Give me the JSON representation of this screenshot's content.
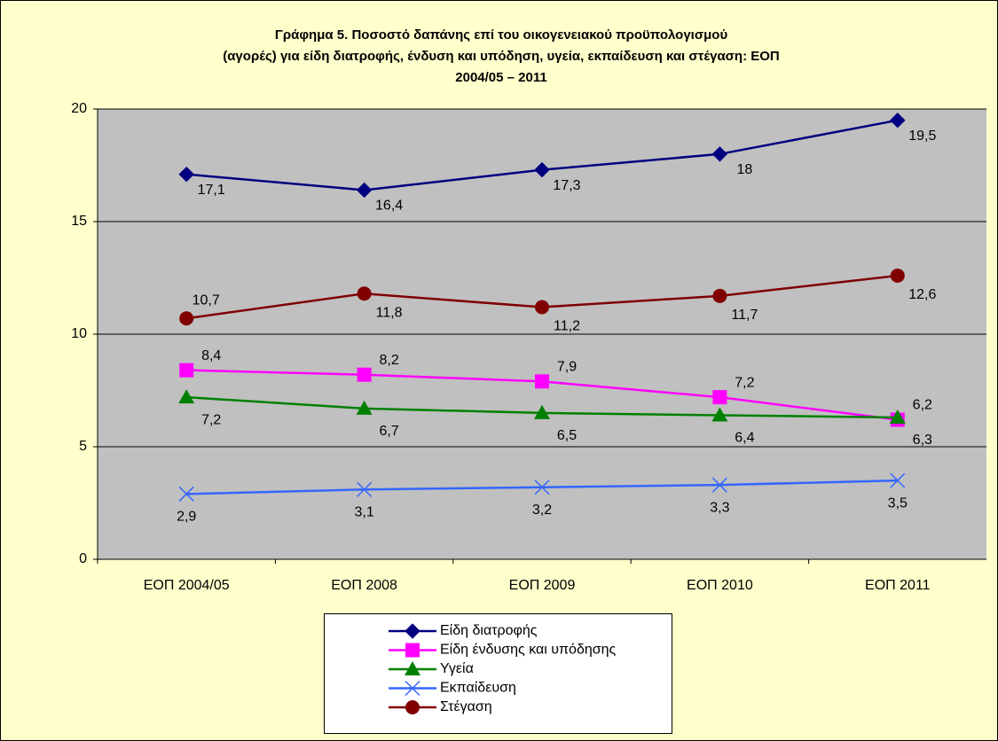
{
  "chart_data": {
    "type": "line",
    "title": [
      "Γράφημα 5. Ποσοστό δαπάνης επί του οικογενειακού προϋπολογισμού",
      "(αγορές) για είδη διατροφής, ένδυση και υπόδηση, υγεία, εκπαίδευση και στέγαση: ΕΟΠ",
      "2004/05 – 2011"
    ],
    "categories": [
      "ΕΟΠ 2004/05",
      "ΕΟΠ 2008",
      "ΕΟΠ 2009",
      "ΕΟΠ 2010",
      "ΕΟΠ 2011"
    ],
    "series": [
      {
        "name": "Είδη διατροφής",
        "color": "#000080",
        "marker": "diamond",
        "values": [
          17.1,
          16.4,
          17.3,
          18,
          19.5
        ],
        "value_labels": [
          "17,1",
          "16,4",
          "17,3",
          "18",
          "19,5"
        ]
      },
      {
        "name": "Είδη ένδυσης και υπόδησης",
        "color": "#FF00FF",
        "marker": "square",
        "values": [
          8.4,
          8.2,
          7.9,
          7.2,
          6.2
        ],
        "value_labels": [
          "8,4",
          "8,2",
          "7,9",
          "7,2",
          "6,2"
        ]
      },
      {
        "name": "Υγεία",
        "color": "#008000",
        "marker": "triangle",
        "values": [
          7.2,
          6.7,
          6.5,
          6.4,
          6.3
        ],
        "value_labels": [
          "7,2",
          "6,7",
          "6,5",
          "6,4",
          "6,3"
        ]
      },
      {
        "name": "Εκπαίδευση",
        "color": "#3366FF",
        "marker": "x",
        "values": [
          2.9,
          3.1,
          3.2,
          3.3,
          3.5
        ],
        "value_labels": [
          "2,9",
          "3,1",
          "3,2",
          "3,3",
          "3,5"
        ]
      },
      {
        "name": "Στέγαση",
        "color": "#800000",
        "marker": "circle",
        "values": [
          10.7,
          11.8,
          11.2,
          11.7,
          12.6
        ],
        "value_labels": [
          "10,7",
          "11,8",
          "11,2",
          "11,7",
          "12,6"
        ]
      }
    ],
    "ylim": [
      0,
      20
    ],
    "yticks": [
      0,
      5,
      10,
      15,
      20
    ],
    "grid": true
  }
}
